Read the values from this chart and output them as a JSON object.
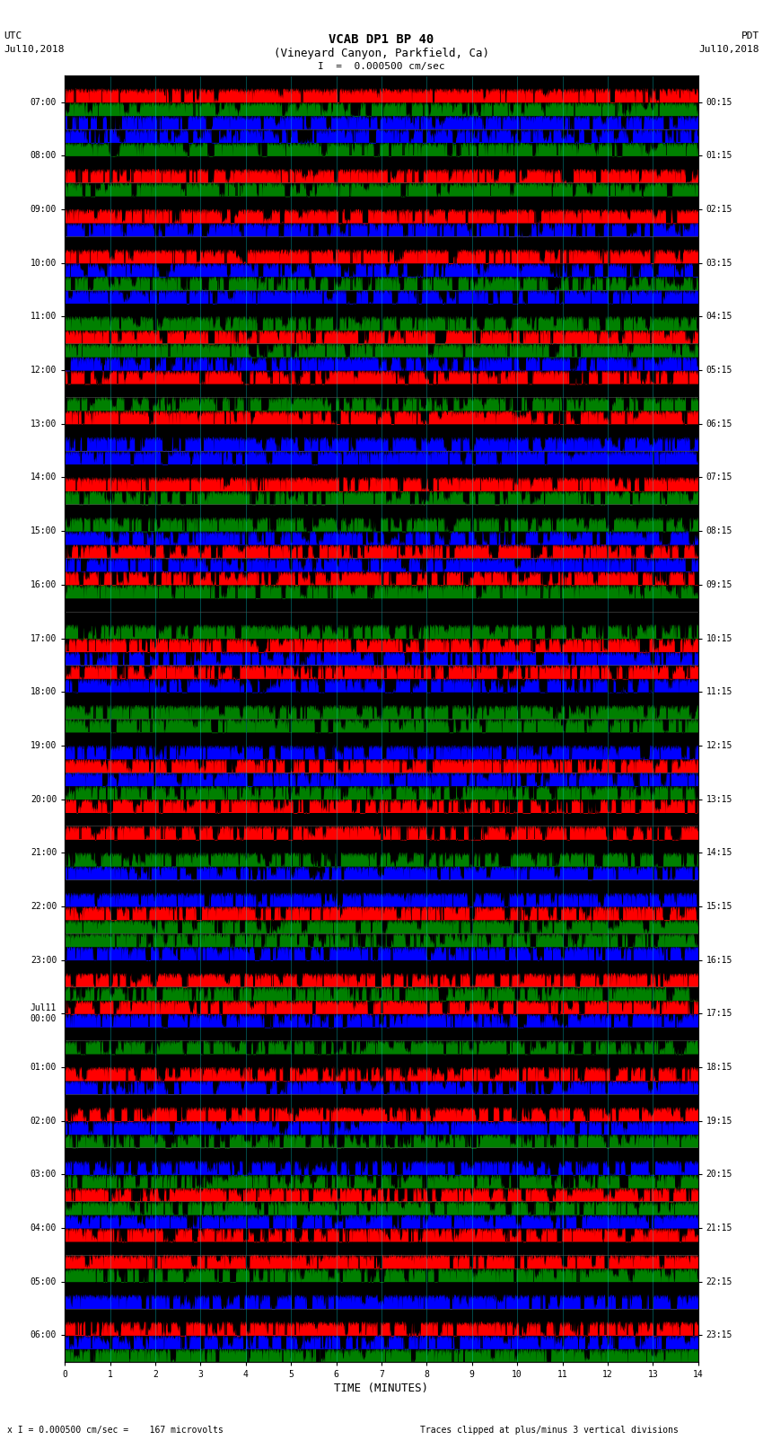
{
  "title_line1": "VCAB DP1 BP 40",
  "title_line2": "(Vineyard Canyon, Parkfield, Ca)",
  "scale_label": "I  =  0.000500 cm/sec",
  "left_label_top": "UTC",
  "left_label_date": "Jul10,2018",
  "right_label_top": "PDT",
  "right_label_date": "Jul10,2018",
  "xlabel": "TIME (MINUTES)",
  "footer_left": "x I = 0.000500 cm/sec =    167 microvolts",
  "footer_right": "Traces clipped at plus/minus 3 vertical divisions",
  "left_times": [
    "07:00",
    "08:00",
    "09:00",
    "10:00",
    "11:00",
    "12:00",
    "13:00",
    "14:00",
    "15:00",
    "16:00",
    "17:00",
    "18:00",
    "19:00",
    "20:00",
    "21:00",
    "22:00",
    "23:00",
    "Jul11\n00:00",
    "01:00",
    "02:00",
    "03:00",
    "04:00",
    "05:00",
    "06:00"
  ],
  "right_times": [
    "00:15",
    "01:15",
    "02:15",
    "03:15",
    "04:15",
    "05:15",
    "06:15",
    "07:15",
    "08:15",
    "09:15",
    "10:15",
    "11:15",
    "12:15",
    "13:15",
    "14:15",
    "15:15",
    "16:15",
    "17:15",
    "18:15",
    "19:15",
    "20:15",
    "21:15",
    "22:15",
    "23:15"
  ],
  "n_rows": 24,
  "bg_color": "#ffffff",
  "xmax": 14,
  "xlabel_fontsize": 9,
  "tick_fontsize": 7,
  "title_fontsize": 10,
  "subtitle_fontsize": 9
}
